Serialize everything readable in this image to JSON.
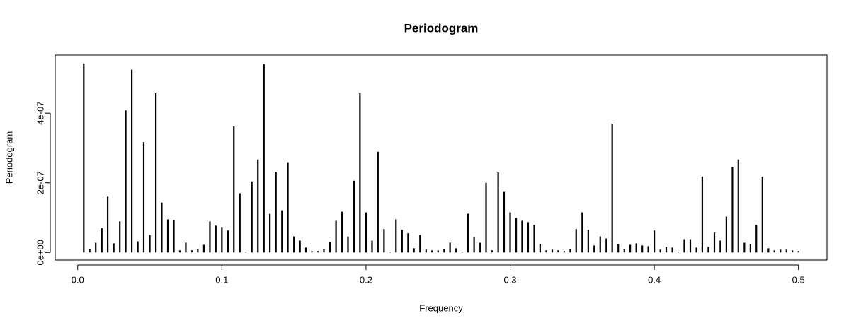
{
  "chart_data": {
    "type": "spike",
    "title": "Periodogram",
    "x_label": "Frequency",
    "y_label": "Periodogram",
    "x": [
      0.0042,
      0.0083,
      0.0125,
      0.0167,
      0.0208,
      0.025,
      0.0292,
      0.0333,
      0.0375,
      0.0417,
      0.0458,
      0.05,
      0.0542,
      0.0583,
      0.0625,
      0.0667,
      0.0708,
      0.075,
      0.0792,
      0.0833,
      0.0875,
      0.0917,
      0.0958,
      0.1,
      0.1042,
      0.1083,
      0.1125,
      0.1167,
      0.1208,
      0.125,
      0.1292,
      0.1333,
      0.1375,
      0.1417,
      0.1458,
      0.15,
      0.1542,
      0.1583,
      0.1625,
      0.1667,
      0.1708,
      0.175,
      0.1792,
      0.1833,
      0.1875,
      0.1917,
      0.1958,
      0.2,
      0.2042,
      0.2083,
      0.2125,
      0.2167,
      0.2208,
      0.225,
      0.2292,
      0.2333,
      0.2375,
      0.2417,
      0.2458,
      0.25,
      0.2542,
      0.2583,
      0.2625,
      0.2667,
      0.2708,
      0.275,
      0.2792,
      0.2833,
      0.2875,
      0.2917,
      0.2958,
      0.3,
      0.3042,
      0.3083,
      0.3125,
      0.3167,
      0.3208,
      0.325,
      0.3292,
      0.3333,
      0.3375,
      0.3417,
      0.3458,
      0.35,
      0.3542,
      0.3583,
      0.3625,
      0.3667,
      0.3708,
      0.375,
      0.3792,
      0.3833,
      0.3875,
      0.3917,
      0.3958,
      0.4,
      0.4042,
      0.4083,
      0.4125,
      0.4167,
      0.4208,
      0.425,
      0.4292,
      0.4333,
      0.4375,
      0.4417,
      0.4458,
      0.45,
      0.4542,
      0.4583,
      0.4625,
      0.4667,
      0.4708,
      0.475,
      0.4792,
      0.4833,
      0.4875,
      0.4917,
      0.4958,
      0.5
    ],
    "values": [
      5.43e-07,
      1e-08,
      2.8e-08,
      7e-08,
      1.6e-07,
      2.6e-08,
      8.9e-08,
      4.08e-07,
      5.25e-07,
      3.2e-08,
      3.17e-07,
      5e-08,
      4.57e-07,
      1.43e-07,
      9.5e-08,
      9.3e-08,
      6e-09,
      2.8e-08,
      6e-09,
      1e-08,
      2.2e-08,
      8.9e-08,
      7.7e-08,
      7.3e-08,
      6.3e-08,
      3.62e-07,
      1.7e-07,
      2e-09,
      2.04e-07,
      2.67e-07,
      5.41e-07,
      1.11e-07,
      2.32e-07,
      1.21e-07,
      2.59e-07,
      4.6e-08,
      3.4e-08,
      1.4e-08,
      4e-09,
      4e-09,
      1e-08,
      3e-08,
      9.1e-08,
      1.17e-07,
      4.6e-08,
      2.06e-07,
      4.57e-07,
      1.15e-07,
      3.4e-08,
      2.89e-07,
      6.7e-08,
      2e-09,
      9.5e-08,
      6.5e-08,
      5.5e-08,
      1.2e-08,
      5e-08,
      8e-09,
      6e-09,
      6e-09,
      1e-08,
      2.8e-08,
      1.2e-08,
      2e-09,
      1.11e-07,
      4.4e-08,
      2.8e-08,
      2e-07,
      6e-09,
      2.3e-07,
      1.74e-07,
      1.15e-07,
      9.9e-08,
      9.1e-08,
      8.7e-08,
      7.9e-08,
      2.4e-08,
      6e-09,
      8e-09,
      6e-09,
      4e-09,
      1e-08,
      6.7e-08,
      1.15e-07,
      6.5e-08,
      2e-08,
      4.6e-08,
      4e-08,
      3.7e-07,
      2.4e-08,
      1e-08,
      2.2e-08,
      2.6e-08,
      2e-08,
      1.8e-08,
      6.3e-08,
      8e-09,
      1.6e-08,
      1.4e-08,
      2e-09,
      3.8e-08,
      3.8e-08,
      1.4e-08,
      2.18e-07,
      1.6e-08,
      5.7e-08,
      3.4e-08,
      1.03e-07,
      2.46e-07,
      2.67e-07,
      2.8e-08,
      2.4e-08,
      7.9e-08,
      2.18e-07,
      1.2e-08,
      6e-09,
      8e-09,
      8e-09,
      6e-09,
      4e-09
    ],
    "color": "#000000",
    "xlim": [
      -0.0156,
      0.5198
    ],
    "xticks": [
      {
        "value": 0,
        "label": "0.0"
      },
      0.1,
      0.2,
      0.3,
      0.4,
      0.5
    ],
    "ylim": [
      -2.18e-08,
      5.668e-07
    ],
    "yticks": [
      {
        "value": 0,
        "label": "0e+00"
      },
      {
        "value": 2e-07,
        "label": "2e-07"
      },
      {
        "value": 4e-07,
        "label": "4e-07"
      }
    ]
  }
}
